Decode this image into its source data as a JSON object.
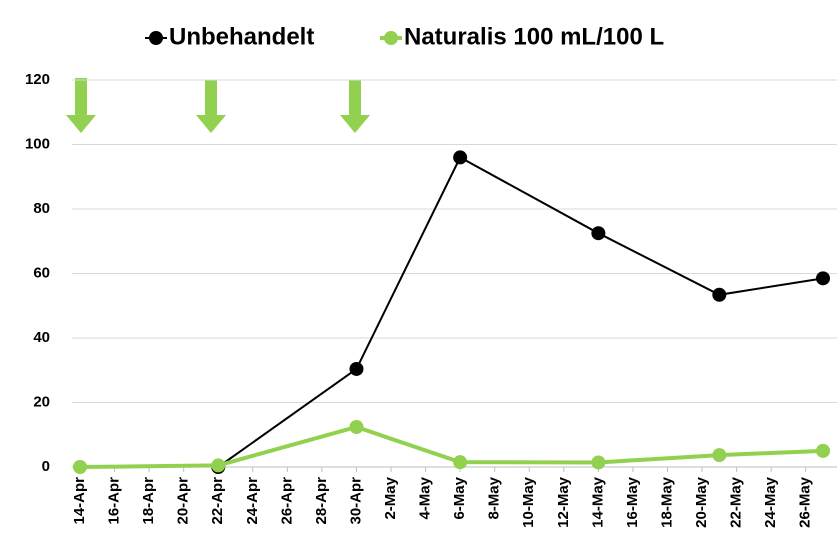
{
  "chart_data": {
    "type": "line",
    "x": [
      "14-Apr",
      "22-Apr",
      "30-Apr",
      "6-May",
      "14-May",
      "21-May",
      "27-May"
    ],
    "series": [
      {
        "name": "Unbehandelt",
        "color": "#000000",
        "values": [
          null,
          0,
          30.4,
          96,
          72.5,
          53.4,
          58.5
        ]
      },
      {
        "name": "Naturalis 100 mL/100 L",
        "color": "#92d050",
        "values": [
          0,
          0.5,
          12.4,
          1.5,
          1.4,
          3.7,
          5
        ]
      }
    ],
    "xlim": [
      "14-Apr",
      "27-May"
    ],
    "xticks": [
      "14-Apr",
      "16-Apr",
      "18-Apr",
      "20-Apr",
      "22-Apr",
      "24-Apr",
      "26-Apr",
      "28-Apr",
      "30-Apr",
      "2-May",
      "4-May",
      "6-May",
      "8-May",
      "10-May",
      "12-May",
      "14-May",
      "16-May",
      "18-May",
      "20-May",
      "22-May",
      "24-May",
      "26-May"
    ],
    "ylim": [
      0,
      120
    ],
    "yticks": [
      0,
      20,
      40,
      60,
      80,
      100,
      120
    ],
    "grid": true,
    "legend": "top"
  }
}
